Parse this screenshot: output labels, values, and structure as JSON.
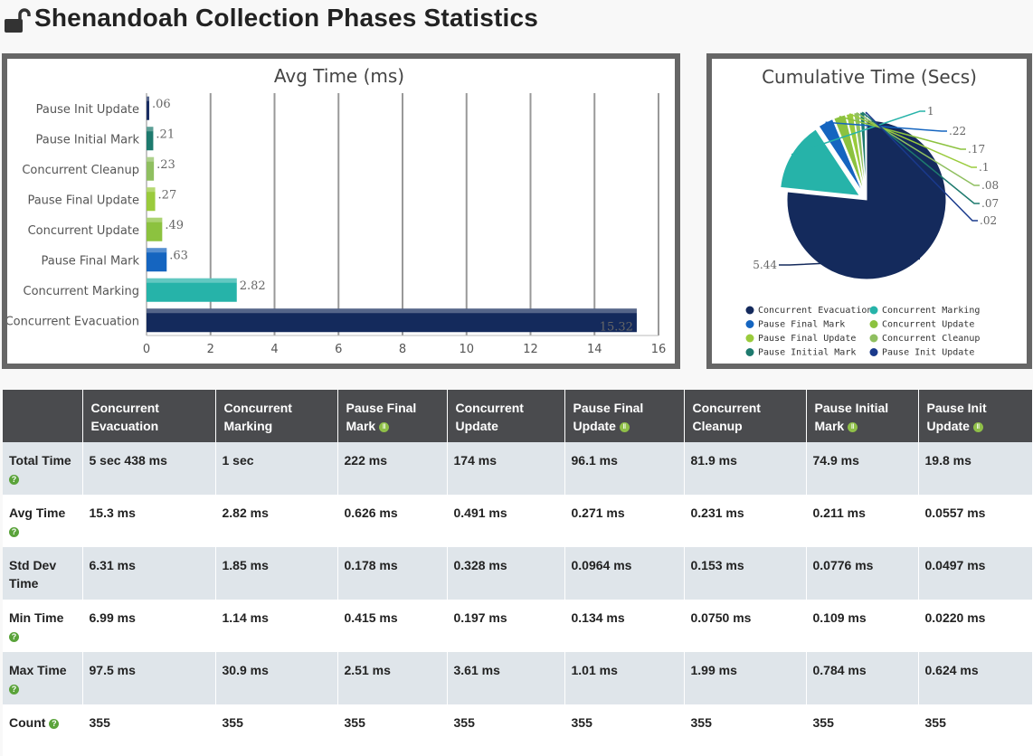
{
  "page_title": "Shenandoah Collection Phases Statistics",
  "bar_chart": {
    "chart_data": {
      "type": "bar",
      "orientation": "horizontal",
      "title": "Avg Time (ms)",
      "categories": [
        "Pause Init Update",
        "Pause Initial Mark",
        "Concurrent Cleanup",
        "Pause Final Update",
        "Concurrent Update",
        "Pause Final Mark",
        "Concurrent Marking",
        "Concurrent Evacuation"
      ],
      "values": [
        0.06,
        0.21,
        0.23,
        0.27,
        0.49,
        0.63,
        2.82,
        15.32
      ],
      "value_labels": [
        ".06",
        ".21",
        ".23",
        ".27",
        ".49",
        ".63",
        "2.82",
        "15.32"
      ],
      "colors": [
        "#1a2e63",
        "#1e7a6e",
        "#8fbf60",
        "#9acb3c",
        "#8cc23f",
        "#1565c0",
        "#26b3a9",
        "#142a5c"
      ],
      "xlim": [
        0,
        16
      ],
      "xticks": [
        "0",
        "2",
        "4",
        "6",
        "8",
        "10",
        "12",
        "14",
        "16"
      ],
      "grid": true
    }
  },
  "pie_chart": {
    "chart_data": {
      "type": "pie",
      "title": "Cumulative Time (Secs)",
      "labels": [
        "Concurrent Evacuation",
        "Concurrent Marking",
        "Pause Final Mark",
        "Concurrent Update",
        "Pause Final Update",
        "Concurrent Cleanup",
        "Pause Initial Mark",
        "Pause Init Update"
      ],
      "values": [
        5.44,
        1,
        0.22,
        0.17,
        0.1,
        0.08,
        0.07,
        0.02
      ],
      "value_labels": [
        "5.44",
        "1",
        ".22",
        ".17",
        ".1",
        ".08",
        ".07",
        ".02"
      ],
      "colors": [
        "#142a5c",
        "#26b3a9",
        "#1565c0",
        "#8cc23f",
        "#9acb3c",
        "#8fbf60",
        "#1e7a6e",
        "#1a3a8c"
      ],
      "legend_position": "bottom"
    }
  },
  "table": {
    "columns": [
      {
        "label": "Concurrent Evacuation",
        "badge": ""
      },
      {
        "label": "Concurrent Marking",
        "badge": ""
      },
      {
        "label": "Pause Final Mark",
        "badge": "pause"
      },
      {
        "label": "Concurrent Update",
        "badge": ""
      },
      {
        "label": "Pause Final Update",
        "badge": "pause"
      },
      {
        "label": "Concurrent Cleanup",
        "badge": ""
      },
      {
        "label": "Pause Initial Mark",
        "badge": "pause"
      },
      {
        "label": "Pause Init Update",
        "badge": "pause"
      }
    ],
    "rows": [
      {
        "label": "Total Time",
        "help": true,
        "values": [
          "5 sec 438 ms",
          "1 sec",
          "222 ms",
          "174 ms",
          "96.1 ms",
          "81.9 ms",
          "74.9 ms",
          "19.8 ms"
        ]
      },
      {
        "label": "Avg Time",
        "help": true,
        "values": [
          "15.3 ms",
          "2.82 ms",
          "0.626 ms",
          "0.491 ms",
          "0.271 ms",
          "0.231 ms",
          "0.211 ms",
          "0.0557 ms"
        ]
      },
      {
        "label": "Std Dev Time",
        "help": false,
        "values": [
          "6.31 ms",
          "1.85 ms",
          "0.178 ms",
          "0.328 ms",
          "0.0964 ms",
          "0.153 ms",
          "0.0776 ms",
          "0.0497 ms"
        ]
      },
      {
        "label": "Min Time",
        "help": true,
        "values": [
          "6.99 ms",
          "1.14 ms",
          "0.415 ms",
          "0.197 ms",
          "0.134 ms",
          "0.0750 ms",
          "0.109 ms",
          "0.0220 ms"
        ]
      },
      {
        "label": "Max Time",
        "help": true,
        "values": [
          "97.5 ms",
          "30.9 ms",
          "2.51 ms",
          "3.61 ms",
          "1.01 ms",
          "1.99 ms",
          "0.784 ms",
          "0.624 ms"
        ]
      },
      {
        "label": "Count",
        "help": true,
        "values": [
          "355",
          "355",
          "355",
          "355",
          "355",
          "355",
          "355",
          "355"
        ]
      }
    ]
  }
}
